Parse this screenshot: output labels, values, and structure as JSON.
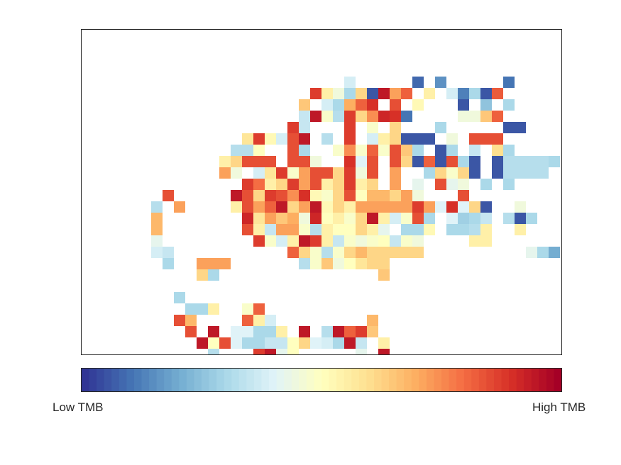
{
  "chart_data": {
    "type": "heatmap",
    "title": "",
    "xlabel": "",
    "ylabel": "",
    "grid": false,
    "colorbar": {
      "low_label": "Low TMB",
      "high_label": "High TMB",
      "colors": [
        "#313695",
        "#4575b4",
        "#74add1",
        "#abd9e9",
        "#e0f3f8",
        "#ffffbf",
        "#fee090",
        "#fdae61",
        "#f46d43",
        "#d73027",
        "#a50026"
      ],
      "steps": 64
    },
    "value_range": [
      0,
      1
    ],
    "cells": [
      [
        20,
        1,
        0.38
      ],
      [
        26,
        1,
        0.08
      ],
      [
        28,
        1,
        0.15
      ],
      [
        34,
        1,
        0.1
      ],
      [
        17,
        2,
        0.88
      ],
      [
        18,
        2,
        0.55
      ],
      [
        19,
        2,
        0.45
      ],
      [
        20,
        2,
        0.3
      ],
      [
        21,
        2,
        0.62
      ],
      [
        22,
        2,
        0.05
      ],
      [
        23,
        2,
        0.95
      ],
      [
        24,
        2,
        0.72
      ],
      [
        25,
        2,
        0.82
      ],
      [
        27,
        2,
        0.55
      ],
      [
        29,
        2,
        0.38
      ],
      [
        30,
        2,
        0.12
      ],
      [
        31,
        2,
        0.3
      ],
      [
        32,
        2,
        0.05
      ],
      [
        33,
        2,
        0.83
      ],
      [
        16,
        3,
        0.65
      ],
      [
        18,
        3,
        0.38
      ],
      [
        19,
        3,
        0.3
      ],
      [
        20,
        3,
        0.7
      ],
      [
        21,
        3,
        0.82
      ],
      [
        22,
        3,
        0.9
      ],
      [
        24,
        3,
        0.85
      ],
      [
        26,
        3,
        0.52
      ],
      [
        30,
        3,
        0.05
      ],
      [
        32,
        3,
        0.25
      ],
      [
        34,
        3,
        0.3
      ],
      [
        16,
        4,
        0.35
      ],
      [
        17,
        4,
        0.95
      ],
      [
        18,
        4,
        0.48
      ],
      [
        19,
        4,
        0.32
      ],
      [
        20,
        4,
        0.88
      ],
      [
        21,
        4,
        0.62
      ],
      [
        22,
        4,
        0.75
      ],
      [
        23,
        4,
        0.92
      ],
      [
        24,
        4,
        0.9
      ],
      [
        25,
        4,
        0.1
      ],
      [
        30,
        4,
        0.45
      ],
      [
        31,
        4,
        0.45
      ],
      [
        32,
        4,
        0.65
      ],
      [
        33,
        4,
        0.82
      ],
      [
        15,
        5,
        0.88
      ],
      [
        16,
        5,
        0.35
      ],
      [
        20,
        5,
        0.88
      ],
      [
        22,
        5,
        0.48
      ],
      [
        24,
        5,
        0.62
      ],
      [
        28,
        5,
        0.3
      ],
      [
        34,
        5,
        0.05
      ],
      [
        35,
        5,
        0.05
      ],
      [
        11,
        6,
        0.58
      ],
      [
        12,
        6,
        0.88
      ],
      [
        13,
        6,
        0.52
      ],
      [
        14,
        6,
        0.38
      ],
      [
        15,
        6,
        0.85
      ],
      [
        16,
        6,
        0.95
      ],
      [
        18,
        6,
        0.32
      ],
      [
        20,
        6,
        0.88
      ],
      [
        22,
        6,
        0.38
      ],
      [
        23,
        6,
        0.55
      ],
      [
        24,
        6,
        0.62
      ],
      [
        25,
        6,
        0.05
      ],
      [
        26,
        6,
        0.05
      ],
      [
        27,
        6,
        0.05
      ],
      [
        29,
        6,
        0.45
      ],
      [
        31,
        6,
        0.85
      ],
      [
        32,
        6,
        0.85
      ],
      [
        33,
        6,
        0.85
      ],
      [
        10,
        7,
        0.32
      ],
      [
        11,
        7,
        0.32
      ],
      [
        12,
        7,
        0.5
      ],
      [
        15,
        7,
        0.85
      ],
      [
        16,
        7,
        0.3
      ],
      [
        19,
        7,
        0.48
      ],
      [
        20,
        7,
        0.75
      ],
      [
        21,
        7,
        0.48
      ],
      [
        22,
        7,
        0.82
      ],
      [
        23,
        7,
        0.48
      ],
      [
        24,
        7,
        0.85
      ],
      [
        25,
        7,
        0.65
      ],
      [
        26,
        7,
        0.3
      ],
      [
        28,
        7,
        0.05
      ],
      [
        29,
        7,
        0.3
      ],
      [
        31,
        7,
        0.35
      ],
      [
        33,
        7,
        0.6
      ],
      [
        34,
        7,
        0.3
      ],
      [
        9,
        8,
        0.55
      ],
      [
        10,
        8,
        0.62
      ],
      [
        11,
        8,
        0.85
      ],
      [
        12,
        8,
        0.85
      ],
      [
        13,
        8,
        0.85
      ],
      [
        15,
        8,
        0.85
      ],
      [
        16,
        8,
        0.85
      ],
      [
        17,
        8,
        0.45
      ],
      [
        20,
        8,
        0.9
      ],
      [
        21,
        8,
        0.4
      ],
      [
        22,
        8,
        0.85
      ],
      [
        24,
        8,
        0.85
      ],
      [
        25,
        8,
        0.62
      ],
      [
        26,
        8,
        0.05
      ],
      [
        27,
        8,
        0.82
      ],
      [
        28,
        8,
        0.05
      ],
      [
        29,
        8,
        0.85
      ],
      [
        30,
        8,
        0.3
      ],
      [
        31,
        8,
        0.05
      ],
      [
        33,
        8,
        0.05
      ],
      [
        34,
        8,
        0.32
      ],
      [
        35,
        8,
        0.32
      ],
      [
        36,
        8,
        0.32
      ],
      [
        37,
        8,
        0.32
      ],
      [
        38,
        8,
        0.3
      ],
      [
        9,
        9,
        0.72
      ],
      [
        10,
        9,
        0.45
      ],
      [
        12,
        9,
        0.38
      ],
      [
        13,
        9,
        0.58
      ],
      [
        14,
        9,
        0.88
      ],
      [
        15,
        9,
        0.48
      ],
      [
        16,
        9,
        0.72
      ],
      [
        17,
        9,
        0.85
      ],
      [
        18,
        9,
        0.85
      ],
      [
        19,
        9,
        0.62
      ],
      [
        20,
        9,
        0.88
      ],
      [
        21,
        9,
        0.45
      ],
      [
        22,
        9,
        0.85
      ],
      [
        24,
        9,
        0.72
      ],
      [
        27,
        9,
        0.3
      ],
      [
        28,
        9,
        0.62
      ],
      [
        29,
        9,
        0.48
      ],
      [
        30,
        9,
        0.62
      ],
      [
        31,
        9,
        0.05
      ],
      [
        33,
        9,
        0.05
      ],
      [
        34,
        9,
        0.32
      ],
      [
        35,
        9,
        0.32
      ],
      [
        36,
        9,
        0.32
      ],
      [
        37,
        9,
        0.32
      ],
      [
        11,
        10,
        0.88
      ],
      [
        12,
        10,
        0.8
      ],
      [
        13,
        10,
        0.55
      ],
      [
        14,
        10,
        0.62
      ],
      [
        15,
        10,
        0.88
      ],
      [
        16,
        10,
        0.72
      ],
      [
        17,
        10,
        0.85
      ],
      [
        18,
        10,
        0.55
      ],
      [
        19,
        10,
        0.62
      ],
      [
        20,
        10,
        0.88
      ],
      [
        21,
        10,
        0.55
      ],
      [
        22,
        10,
        0.62
      ],
      [
        24,
        10,
        0.72
      ],
      [
        26,
        10,
        0.42
      ],
      [
        28,
        10,
        0.85
      ],
      [
        29,
        10,
        0.42
      ],
      [
        30,
        10,
        0.45
      ],
      [
        32,
        10,
        0.3
      ],
      [
        34,
        10,
        0.3
      ],
      [
        4,
        11,
        0.85
      ],
      [
        10,
        11,
        0.95
      ],
      [
        11,
        11,
        0.85
      ],
      [
        12,
        11,
        0.62
      ],
      [
        13,
        11,
        0.88
      ],
      [
        14,
        11,
        0.85
      ],
      [
        15,
        11,
        0.75
      ],
      [
        16,
        11,
        0.9
      ],
      [
        17,
        11,
        0.52
      ],
      [
        18,
        11,
        0.48
      ],
      [
        19,
        11,
        0.62
      ],
      [
        20,
        11,
        0.85
      ],
      [
        21,
        11,
        0.5
      ],
      [
        22,
        11,
        0.68
      ],
      [
        23,
        11,
        0.68
      ],
      [
        24,
        11,
        0.62
      ],
      [
        25,
        11,
        0.72
      ],
      [
        26,
        11,
        0.45
      ],
      [
        30,
        11,
        0.85
      ],
      [
        3,
        12,
        0.32
      ],
      [
        5,
        12,
        0.72
      ],
      [
        10,
        12,
        0.55
      ],
      [
        11,
        12,
        0.85
      ],
      [
        12,
        12,
        0.72
      ],
      [
        13,
        12,
        0.82
      ],
      [
        14,
        12,
        0.95
      ],
      [
        15,
        12,
        0.62
      ],
      [
        16,
        12,
        0.72
      ],
      [
        17,
        12,
        0.95
      ],
      [
        18,
        12,
        0.52
      ],
      [
        19,
        12,
        0.62
      ],
      [
        20,
        12,
        0.55
      ],
      [
        21,
        12,
        0.72
      ],
      [
        22,
        12,
        0.72
      ],
      [
        23,
        12,
        0.72
      ],
      [
        24,
        12,
        0.72
      ],
      [
        25,
        12,
        0.72
      ],
      [
        26,
        12,
        0.88
      ],
      [
        27,
        12,
        0.72
      ],
      [
        28,
        12,
        0.4
      ],
      [
        29,
        12,
        0.9
      ],
      [
        30,
        12,
        0.4
      ],
      [
        31,
        12,
        0.62
      ],
      [
        32,
        12,
        0.05
      ],
      [
        35,
        12,
        0.45
      ],
      [
        3,
        13,
        0.68
      ],
      [
        11,
        13,
        0.92
      ],
      [
        12,
        13,
        0.58
      ],
      [
        13,
        13,
        0.72
      ],
      [
        14,
        13,
        0.65
      ],
      [
        15,
        13,
        0.7
      ],
      [
        16,
        13,
        0.45
      ],
      [
        17,
        13,
        0.92
      ],
      [
        18,
        13,
        0.5
      ],
      [
        19,
        13,
        0.55
      ],
      [
        20,
        13,
        0.48
      ],
      [
        21,
        13,
        0.62
      ],
      [
        22,
        13,
        0.95
      ],
      [
        23,
        13,
        0.55
      ],
      [
        24,
        13,
        0.38
      ],
      [
        25,
        13,
        0.48
      ],
      [
        26,
        13,
        0.85
      ],
      [
        27,
        13,
        0.3
      ],
      [
        29,
        13,
        0.4
      ],
      [
        30,
        13,
        0.28
      ],
      [
        31,
        13,
        0.3
      ],
      [
        32,
        13,
        0.35
      ],
      [
        34,
        13,
        0.32
      ],
      [
        35,
        13,
        0.05
      ],
      [
        36,
        13,
        0.3
      ],
      [
        3,
        14,
        0.68
      ],
      [
        11,
        14,
        0.85
      ],
      [
        12,
        14,
        0.55
      ],
      [
        13,
        14,
        0.35
      ],
      [
        14,
        14,
        0.72
      ],
      [
        15,
        14,
        0.72
      ],
      [
        16,
        14,
        0.48
      ],
      [
        17,
        14,
        0.32
      ],
      [
        18,
        14,
        0.55
      ],
      [
        19,
        14,
        0.5
      ],
      [
        20,
        14,
        0.5
      ],
      [
        21,
        14,
        0.62
      ],
      [
        22,
        14,
        0.55
      ],
      [
        23,
        14,
        0.42
      ],
      [
        25,
        14,
        0.3
      ],
      [
        26,
        14,
        0.3
      ],
      [
        27,
        14,
        0.52
      ],
      [
        29,
        14,
        0.3
      ],
      [
        30,
        14,
        0.3
      ],
      [
        31,
        14,
        0.32
      ],
      [
        32,
        14,
        0.55
      ],
      [
        35,
        14,
        0.55
      ],
      [
        3,
        15,
        0.42
      ],
      [
        12,
        15,
        0.88
      ],
      [
        13,
        15,
        0.48
      ],
      [
        14,
        15,
        0.38
      ],
      [
        15,
        15,
        0.55
      ],
      [
        16,
        15,
        0.95
      ],
      [
        17,
        15,
        0.88
      ],
      [
        18,
        15,
        0.55
      ],
      [
        19,
        15,
        0.35
      ],
      [
        20,
        15,
        0.48
      ],
      [
        21,
        15,
        0.45
      ],
      [
        22,
        15,
        0.48
      ],
      [
        23,
        15,
        0.5
      ],
      [
        24,
        15,
        0.35
      ],
      [
        25,
        15,
        0.48
      ],
      [
        26,
        15,
        0.45
      ],
      [
        31,
        15,
        0.55
      ],
      [
        32,
        15,
        0.55
      ],
      [
        3,
        16,
        0.38
      ],
      [
        4,
        16,
        0.35
      ],
      [
        15,
        16,
        0.82
      ],
      [
        16,
        16,
        0.62
      ],
      [
        17,
        16,
        0.48
      ],
      [
        18,
        16,
        0.32
      ],
      [
        19,
        16,
        0.48
      ],
      [
        20,
        16,
        0.62
      ],
      [
        21,
        16,
        0.68
      ],
      [
        22,
        16,
        0.62
      ],
      [
        23,
        16,
        0.62
      ],
      [
        24,
        16,
        0.62
      ],
      [
        25,
        16,
        0.62
      ],
      [
        26,
        16,
        0.62
      ],
      [
        36,
        16,
        0.42
      ],
      [
        37,
        16,
        0.3
      ],
      [
        38,
        16,
        0.2
      ],
      [
        4,
        17,
        0.3
      ],
      [
        7,
        17,
        0.72
      ],
      [
        8,
        17,
        0.72
      ],
      [
        9,
        17,
        0.72
      ],
      [
        16,
        17,
        0.32
      ],
      [
        17,
        17,
        0.48
      ],
      [
        18,
        17,
        0.65
      ],
      [
        19,
        17,
        0.45
      ],
      [
        20,
        17,
        0.5
      ],
      [
        21,
        17,
        0.58
      ],
      [
        22,
        17,
        0.62
      ],
      [
        23,
        17,
        0.62
      ],
      [
        7,
        18,
        0.62
      ],
      [
        8,
        18,
        0.3
      ],
      [
        23,
        18,
        0.65
      ],
      [
        5,
        20,
        0.3
      ],
      [
        6,
        21,
        0.3
      ],
      [
        7,
        21,
        0.3
      ],
      [
        8,
        21,
        0.55
      ],
      [
        11,
        21,
        0.48
      ],
      [
        12,
        21,
        0.82
      ],
      [
        5,
        22,
        0.85
      ],
      [
        6,
        22,
        0.68
      ],
      [
        11,
        22,
        0.82
      ],
      [
        12,
        22,
        0.55
      ],
      [
        13,
        22,
        0.38
      ],
      [
        22,
        22,
        0.68
      ],
      [
        6,
        23,
        0.85
      ],
      [
        8,
        23,
        0.95
      ],
      [
        10,
        23,
        0.4
      ],
      [
        11,
        23,
        0.4
      ],
      [
        12,
        23,
        0.3
      ],
      [
        13,
        23,
        0.3
      ],
      [
        14,
        23,
        0.55
      ],
      [
        16,
        23,
        0.95
      ],
      [
        18,
        23,
        0.32
      ],
      [
        19,
        23,
        0.95
      ],
      [
        20,
        23,
        0.82
      ],
      [
        21,
        23,
        0.88
      ],
      [
        22,
        23,
        0.65
      ],
      [
        7,
        24,
        0.95
      ],
      [
        8,
        24,
        0.5
      ],
      [
        9,
        24,
        0.85
      ],
      [
        10,
        24,
        0.4
      ],
      [
        11,
        24,
        0.3
      ],
      [
        12,
        24,
        0.3
      ],
      [
        13,
        24,
        0.35
      ],
      [
        14,
        24,
        0.35
      ],
      [
        15,
        24,
        0.5
      ],
      [
        16,
        24,
        0.62
      ],
      [
        17,
        24,
        0.4
      ],
      [
        18,
        24,
        0.38
      ],
      [
        19,
        24,
        0.3
      ],
      [
        20,
        24,
        0.95
      ],
      [
        21,
        24,
        0.35
      ],
      [
        23,
        24,
        0.55
      ],
      [
        8,
        25,
        0.32
      ],
      [
        12,
        25,
        0.88
      ],
      [
        13,
        25,
        0.95
      ],
      [
        14,
        25,
        0.42
      ],
      [
        15,
        25,
        0.5
      ],
      [
        21,
        25,
        0.42
      ],
      [
        23,
        25,
        0.95
      ],
      [
        11,
        26,
        0.88
      ],
      [
        12,
        26,
        0.55
      ],
      [
        13,
        26,
        0.85
      ],
      [
        14,
        26,
        0.95
      ],
      [
        15,
        26,
        0.4
      ],
      [
        16,
        26,
        0.4
      ],
      [
        19,
        26,
        0.95
      ],
      [
        23,
        26,
        0.35
      ],
      [
        14,
        27,
        0.35
      ],
      [
        15,
        27,
        0.95
      ],
      [
        20,
        27,
        0.95
      ],
      [
        23,
        27,
        0.62
      ],
      [
        15,
        28,
        0.35
      ],
      [
        16,
        28,
        0.35
      ],
      [
        21,
        28,
        0.3
      ],
      [
        23,
        28,
        0.35
      ],
      [
        16,
        29,
        0.85
      ],
      [
        16,
        30,
        0.6
      ]
    ]
  }
}
